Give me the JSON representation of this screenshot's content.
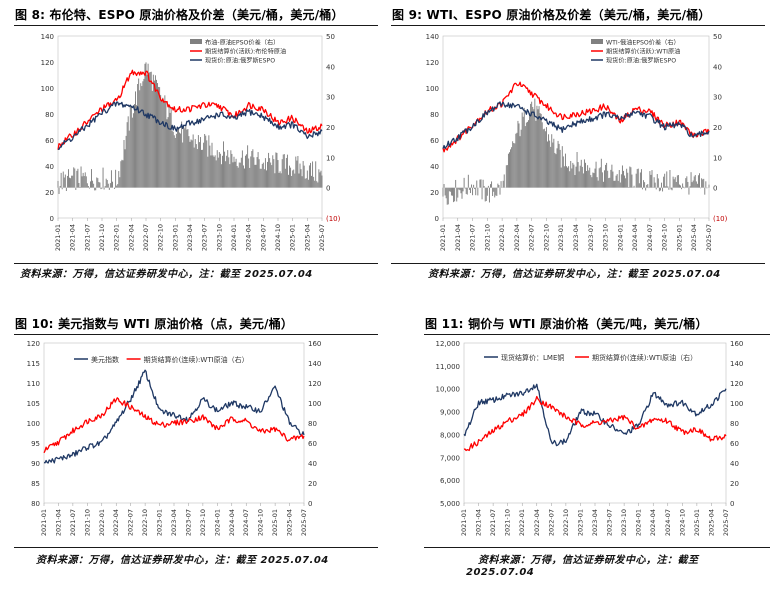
{
  "figures": [
    {
      "number": "图 8:",
      "title": "布伦特、ESPO 原油价格及价差（美元/桶，美元/桶）",
      "source": "资料来源：万得，信达证券研发中心，注：截至 2025.07.04"
    },
    {
      "number": "图 9:",
      "title": "WTI、ESPO 原油价格及价差（美元/桶，美元/桶）",
      "source": "资料来源：万得，信达证券研发中心，注：截至 2025.07.04"
    },
    {
      "number": "图 10:",
      "title": "美元指数与 WTI 原油价格（点，美元/桶）",
      "source": "资料来源：万得，信达证券研发中心，注：截至 2025.07.04"
    },
    {
      "number": "图 11:",
      "title": "铜价与 WTI 原油价格（美元/吨，美元/桶）",
      "source": "资料来源：万得，信达证券研发中心，注：截至",
      "source_line2": "2025.07.04"
    }
  ],
  "chart_data": [
    {
      "type": "line",
      "title": "图 8: 布伦特、ESPO 原油价格及价差（美元/桶，美元/桶）",
      "x": [
        "2021-01",
        "2021-04",
        "2021-07",
        "2021-10",
        "2022-01",
        "2022-04",
        "2022-07",
        "2022-10",
        "2023-01",
        "2023-04",
        "2023-07",
        "2023-10",
        "2024-01",
        "2024-04",
        "2024-07",
        "2024-10",
        "2025-01",
        "2025-04",
        "2025-07"
      ],
      "tick_labels": [
        "2021-01",
        "2021-04",
        "2021-07",
        "2021-10",
        "2022-01",
        "2022-04",
        "2022-07",
        "2022-10",
        "2023-01",
        "2023-04",
        "2023-07",
        "2023-10",
        "2024-01",
        "2024-04",
        "2024-07",
        "2024-10",
        "2025-01",
        "2025-04",
        "2025-07"
      ],
      "ylim_left": [
        0,
        140
      ],
      "yticks_left": [
        0,
        20,
        40,
        60,
        80,
        100,
        120,
        140
      ],
      "ylim_right": [
        -10,
        50
      ],
      "yticks_right": [
        "(10)",
        "0",
        "10",
        "20",
        "30",
        "40",
        "50"
      ],
      "series": [
        {
          "name": "布油-原油EPSO价差（右）",
          "kind": "bar",
          "axis": "right",
          "color": "#808080",
          "values": [
            1.5,
            3,
            3,
            3,
            2,
            25,
            40,
            30,
            20,
            16,
            14,
            12,
            10,
            10,
            8,
            8,
            7,
            6,
            4
          ]
        },
        {
          "name": "期货结算价(活跃):布伦特原油",
          "kind": "line",
          "axis": "left",
          "color": "#ff0000",
          "values": [
            55,
            64,
            74,
            84,
            90,
            112,
            112,
            93,
            83,
            84,
            87,
            86,
            78,
            87,
            84,
            73,
            77,
            66,
            71
          ]
        },
        {
          "name": "现货价:原油:俄罗斯ESPO",
          "kind": "line",
          "axis": "left",
          "color": "#1f3864",
          "values": [
            54,
            62,
            71,
            81,
            88,
            86,
            80,
            74,
            68,
            73,
            76,
            80,
            76,
            82,
            78,
            70,
            72,
            62,
            67
          ]
        }
      ]
    },
    {
      "type": "line",
      "title": "图 9: WTI、ESPO 原油价格及价差（美元/桶，美元/桶）",
      "x": [
        "2021-01",
        "2021-04",
        "2021-07",
        "2021-10",
        "2022-01",
        "2022-04",
        "2022-07",
        "2022-10",
        "2023-01",
        "2023-04",
        "2023-07",
        "2023-10",
        "2024-01",
        "2024-04",
        "2024-07",
        "2024-10",
        "2025-01",
        "2025-04",
        "2025-07"
      ],
      "tick_labels": [
        "2021-01",
        "2021-04",
        "2021-07",
        "2021-10",
        "2022-01",
        "2022-04",
        "2022-07",
        "2022-10",
        "2023-01",
        "2023-04",
        "2023-07",
        "2023-10",
        "2024-01",
        "2024-04",
        "2024-07",
        "2024-10",
        "2025-01",
        "2025-04",
        "2025-07"
      ],
      "ylim_left": [
        0,
        140
      ],
      "yticks_left": [
        0,
        20,
        40,
        60,
        80,
        100,
        120,
        140
      ],
      "ylim_right": [
        -10,
        50
      ],
      "yticks_right": [
        "(10)",
        "0",
        "10",
        "20",
        "30",
        "40",
        "50"
      ],
      "series": [
        {
          "name": "WTI-俄油EPSO价差（右）",
          "kind": "bar",
          "axis": "right",
          "color": "#808080",
          "values": [
            -2,
            -1,
            1,
            -2,
            0,
            18,
            28,
            18,
            10,
            8,
            7,
            5,
            4,
            3,
            2,
            2,
            2,
            1,
            1
          ]
        },
        {
          "name": "期货结算价(活跃):WTI原油",
          "kind": "line",
          "axis": "left",
          "color": "#ff0000",
          "values": [
            52,
            61,
            72,
            82,
            88,
            104,
            96,
            86,
            78,
            80,
            82,
            86,
            74,
            84,
            82,
            71,
            74,
            63,
            67
          ]
        },
        {
          "name": "现货价:原油:俄罗斯ESPO",
          "kind": "line",
          "axis": "left",
          "color": "#1f3864",
          "values": [
            54,
            62,
            71,
            81,
            88,
            86,
            80,
            74,
            68,
            73,
            76,
            80,
            76,
            82,
            78,
            70,
            72,
            62,
            67
          ]
        }
      ]
    },
    {
      "type": "line",
      "title": "图 10: 美元指数与 WTI 原油价格（点，美元/桶）",
      "x": [
        "2021-01",
        "2021-04",
        "2021-07",
        "2021-10",
        "2022-01",
        "2022-04",
        "2022-07",
        "2022-10",
        "2023-01",
        "2023-04",
        "2023-07",
        "2023-10",
        "2024-01",
        "2024-04",
        "2024-07",
        "2024-10",
        "2025-01",
        "2025-04",
        "2025-07"
      ],
      "tick_labels": [
        "2021-01",
        "2021-04",
        "2021-07",
        "2021-10",
        "2022-01",
        "2022-04",
        "2022-07",
        "2022-10",
        "2023-01",
        "2023-04",
        "2023-07",
        "2023-10",
        "2024-01",
        "2024-04",
        "2024-07",
        "2024-10",
        "2025-01",
        "2025-04",
        "2025-07"
      ],
      "ylim_left": [
        80,
        120
      ],
      "yticks_left": [
        80,
        85,
        90,
        95,
        100,
        105,
        110,
        115,
        120
      ],
      "ylim_right": [
        0,
        160
      ],
      "yticks_right": [
        0,
        20,
        40,
        60,
        80,
        100,
        120,
        140,
        160
      ],
      "series": [
        {
          "name": "美元指数",
          "kind": "line",
          "axis": "left",
          "color": "#1f3864",
          "values": [
            90,
            91,
            92,
            94,
            95,
            100,
            106,
            113,
            103,
            102,
            101,
            106,
            103,
            105,
            104,
            103,
            109,
            100,
            97
          ]
        },
        {
          "name": "期货结算价(连续):WTI原油（右）",
          "kind": "line",
          "axis": "right",
          "color": "#ff0000",
          "values": [
            52,
            61,
            72,
            82,
            88,
            104,
            96,
            86,
            78,
            80,
            82,
            86,
            74,
            84,
            82,
            71,
            74,
            63,
            67
          ]
        }
      ]
    },
    {
      "type": "line",
      "title": "图 11: 铜价与 WTI 原油价格（美元/吨，美元/桶）",
      "x": [
        "2021-01",
        "2021-04",
        "2021-07",
        "2021-10",
        "2022-01",
        "2022-04",
        "2022-07",
        "2022-10",
        "2023-01",
        "2023-04",
        "2023-07",
        "2023-10",
        "2024-01",
        "2024-04",
        "2024-07",
        "2024-10",
        "2025-01",
        "2025-04",
        "2025-07"
      ],
      "tick_labels": [
        "2021-01",
        "2021-04",
        "2021-07",
        "2021-10",
        "2022-01",
        "2022-04",
        "2022-07",
        "2022-10",
        "2023-01",
        "2023-04",
        "2023-07",
        "2023-10",
        "2024-01",
        "2024-04",
        "2024-07",
        "2024-10",
        "2025-01",
        "2025-04",
        "2025-07"
      ],
      "ylim_left": [
        5000,
        12000
      ],
      "yticks_left": [
        "5,000",
        "6,000",
        "7,000",
        "8,000",
        "9,000",
        "10,000",
        "11,000",
        "12,000"
      ],
      "ylim_right": [
        0,
        160
      ],
      "yticks_right": [
        0,
        20,
        40,
        60,
        80,
        100,
        120,
        140,
        160
      ],
      "series": [
        {
          "name": "现货结算价：LME铜",
          "kind": "line",
          "axis": "left",
          "color": "#1f3864",
          "values": [
            7900,
            9400,
            9500,
            9700,
            9800,
            10200,
            7600,
            7700,
            9000,
            8900,
            8400,
            8000,
            8400,
            9800,
            9300,
            9400,
            8900,
            9300,
            10000
          ]
        },
        {
          "name": "期货结算价(连续):WTI原油（右）",
          "kind": "line",
          "axis": "right",
          "color": "#ff0000",
          "values": [
            52,
            61,
            72,
            82,
            88,
            104,
            96,
            86,
            78,
            80,
            82,
            86,
            74,
            84,
            82,
            71,
            74,
            63,
            67
          ]
        }
      ]
    }
  ]
}
